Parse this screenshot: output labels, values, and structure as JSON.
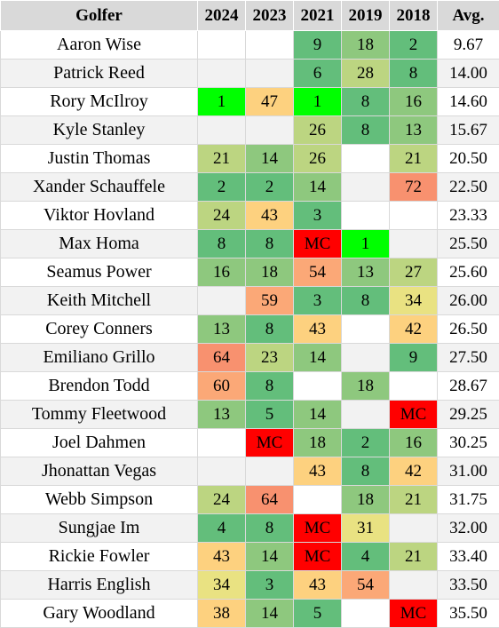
{
  "header": {
    "golfer": "Golfer",
    "years": [
      "2024",
      "2023",
      "2021",
      "2019",
      "2018"
    ],
    "avg": "Avg."
  },
  "rows": [
    {
      "golfer": "Aaron Wise",
      "cells": [
        "",
        "",
        "9",
        "18",
        "2"
      ],
      "avg": "9.67"
    },
    {
      "golfer": "Patrick Reed",
      "cells": [
        "",
        "",
        "6",
        "28",
        "8"
      ],
      "avg": "14.00"
    },
    {
      "golfer": "Rory McIlroy",
      "cells": [
        "1",
        "47",
        "1",
        "8",
        "16"
      ],
      "avg": "14.60"
    },
    {
      "golfer": "Kyle Stanley",
      "cells": [
        "",
        "",
        "26",
        "8",
        "13"
      ],
      "avg": "15.67"
    },
    {
      "golfer": "Justin Thomas",
      "cells": [
        "21",
        "14",
        "26",
        "",
        "21"
      ],
      "avg": "20.50"
    },
    {
      "golfer": "Xander Schauffele",
      "cells": [
        "2",
        "2",
        "14",
        "",
        "72"
      ],
      "avg": "22.50"
    },
    {
      "golfer": "Viktor Hovland",
      "cells": [
        "24",
        "43",
        "3",
        "",
        ""
      ],
      "avg": "23.33"
    },
    {
      "golfer": "Max Homa",
      "cells": [
        "8",
        "8",
        "MC",
        "1",
        ""
      ],
      "avg": "25.50"
    },
    {
      "golfer": "Seamus Power",
      "cells": [
        "16",
        "18",
        "54",
        "13",
        "27"
      ],
      "avg": "25.60"
    },
    {
      "golfer": "Keith Mitchell",
      "cells": [
        "",
        "59",
        "3",
        "8",
        "34"
      ],
      "avg": "26.00"
    },
    {
      "golfer": "Corey Conners",
      "cells": [
        "13",
        "8",
        "43",
        "",
        "42"
      ],
      "avg": "26.50"
    },
    {
      "golfer": "Emiliano Grillo",
      "cells": [
        "64",
        "23",
        "14",
        "",
        "9"
      ],
      "avg": "27.50"
    },
    {
      "golfer": "Brendon Todd",
      "cells": [
        "60",
        "8",
        "",
        "18",
        ""
      ],
      "avg": "28.67"
    },
    {
      "golfer": "Tommy Fleetwood",
      "cells": [
        "13",
        "5",
        "14",
        "",
        "MC"
      ],
      "avg": "29.25"
    },
    {
      "golfer": "Joel Dahmen",
      "cells": [
        "",
        "MC",
        "18",
        "2",
        "16"
      ],
      "avg": "30.25"
    },
    {
      "golfer": "Jhonattan Vegas",
      "cells": [
        "",
        "",
        "43",
        "8",
        "42"
      ],
      "avg": "31.00"
    },
    {
      "golfer": "Webb Simpson",
      "cells": [
        "24",
        "64",
        "",
        "18",
        "21"
      ],
      "avg": "31.75"
    },
    {
      "golfer": "Sungjae Im",
      "cells": [
        "4",
        "8",
        "MC",
        "31",
        ""
      ],
      "avg": "32.00"
    },
    {
      "golfer": "Rickie Fowler",
      "cells": [
        "43",
        "14",
        "MC",
        "4",
        "21"
      ],
      "avg": "33.40"
    },
    {
      "golfer": "Harris English",
      "cells": [
        "34",
        "3",
        "43",
        "54",
        ""
      ],
      "avg": "33.50"
    },
    {
      "golfer": "Gary Woodland",
      "cells": [
        "38",
        "14",
        "5",
        "",
        "MC"
      ],
      "avg": "35.50"
    }
  ],
  "colors": {
    "header_bg": "#d9d9d9",
    "row_stripe": "#f2f2f2",
    "missed_cut": "#ff0000",
    "best_finish": "#00ff00",
    "scale": [
      "#63be7b",
      "#8ec87e",
      "#bcd581",
      "#e9e282",
      "#fdd17f",
      "#fba877",
      "#f8916f"
    ]
  }
}
